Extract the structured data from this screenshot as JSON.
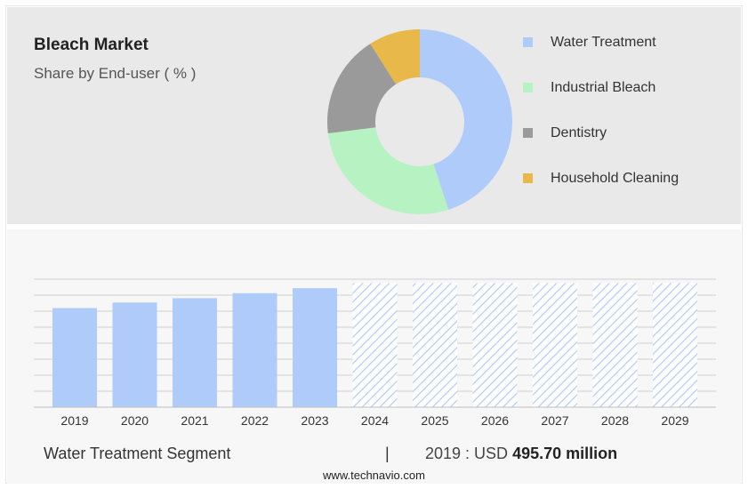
{
  "header": {
    "title": "Bleach Market",
    "subtitle": "Share by End-user ( % )"
  },
  "colors": {
    "bar_actual": "#aecbfa",
    "bar_forecast_hatch": "#aecbfa",
    "grid": "#cfcfcf"
  },
  "chart_data": [
    {
      "type": "pie",
      "style": "donut",
      "labels": [
        "Water Treatment",
        "Industrial Bleach",
        "Dentistry",
        "Household Cleaning"
      ],
      "values": [
        45,
        28,
        18,
        9
      ],
      "colors": [
        "#aecbfa",
        "#b7f2c2",
        "#9a9a9a",
        "#e8b84a"
      ],
      "legend_position": "right"
    },
    {
      "type": "bar",
      "categories": [
        "2019",
        "2020",
        "2021",
        "2022",
        "2023",
        "2024",
        "2025",
        "2026",
        "2027",
        "2028",
        "2029"
      ],
      "values": [
        495.7,
        523,
        545,
        570,
        595,
        620,
        620,
        620,
        620,
        620,
        620
      ],
      "forecast_from": "2024",
      "ylim": [
        0,
        640
      ],
      "grid": true,
      "xlabel": "",
      "ylabel": ""
    }
  ],
  "footer": {
    "segment": "Water Treatment Segment",
    "separator": "|",
    "value_prefix": "2019 : USD",
    "value_bold": "495.70 million",
    "website": "www.technavio.com"
  }
}
